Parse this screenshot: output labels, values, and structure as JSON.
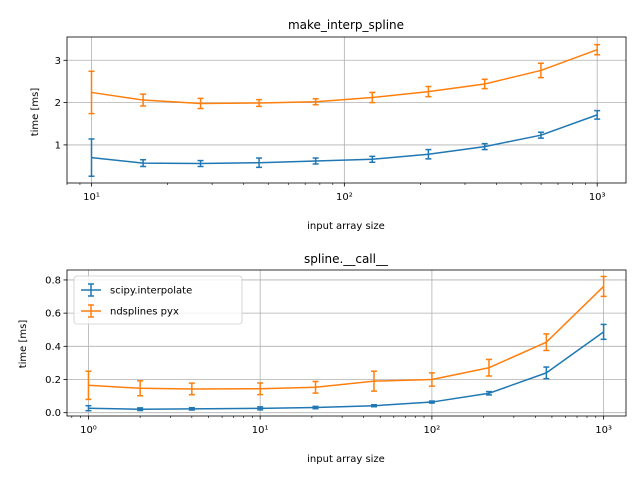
{
  "chart_data": [
    {
      "type": "line",
      "title": "make_interp_spline",
      "xlabel": "input array size",
      "ylabel": "time [ms]",
      "xscale": "log",
      "xlim": [
        8,
        1300
      ],
      "ylim": [
        0.1,
        3.55
      ],
      "xticks": [
        10,
        100,
        1000
      ],
      "xtick_labels": [
        "10¹",
        "10²",
        "10³"
      ],
      "yticks": [
        1,
        2,
        3
      ],
      "ytick_labels": [
        "1",
        "2",
        "3"
      ],
      "grid": true,
      "legend": null,
      "x": [
        10,
        16,
        27,
        46,
        77,
        129,
        215,
        359,
        599,
        1000
      ],
      "series": [
        {
          "name": "scipy.interpolate",
          "color": "#1f77b4",
          "values": [
            0.7,
            0.57,
            0.56,
            0.58,
            0.62,
            0.66,
            0.78,
            0.96,
            1.23,
            1.71
          ],
          "errors": [
            0.44,
            0.08,
            0.07,
            0.11,
            0.07,
            0.07,
            0.11,
            0.07,
            0.07,
            0.1
          ]
        },
        {
          "name": "ndsplines pyx",
          "color": "#ff7f0e",
          "values": [
            2.24,
            2.06,
            1.98,
            1.99,
            2.02,
            2.12,
            2.26,
            2.44,
            2.76,
            3.25
          ],
          "errors": [
            0.5,
            0.14,
            0.12,
            0.08,
            0.07,
            0.12,
            0.12,
            0.11,
            0.17,
            0.12
          ]
        }
      ]
    },
    {
      "type": "line",
      "title": "spline.__call__",
      "xlabel": "input array size",
      "ylabel": "time [ms]",
      "xscale": "log",
      "xlim": [
        0.75,
        1350
      ],
      "ylim": [
        -0.02,
        0.86
      ],
      "xticks": [
        1,
        10,
        100,
        1000
      ],
      "xtick_labels": [
        "10⁰",
        "10¹",
        "10²",
        "10³"
      ],
      "yticks": [
        0.0,
        0.2,
        0.4,
        0.6,
        0.8
      ],
      "ytick_labels": [
        "0.0",
        "0.2",
        "0.4",
        "0.6",
        "0.8"
      ],
      "grid": true,
      "legend": "upper-left",
      "x": [
        1,
        2,
        4,
        10,
        21,
        46,
        100,
        215,
        464,
        1000
      ],
      "series": [
        {
          "name": "scipy.interpolate",
          "color": "#1f77b4",
          "values": [
            0.027,
            0.021,
            0.023,
            0.026,
            0.031,
            0.042,
            0.064,
            0.117,
            0.24,
            0.487
          ],
          "errors": [
            0.015,
            0.008,
            0.007,
            0.009,
            0.007,
            0.006,
            0.006,
            0.01,
            0.035,
            0.045
          ]
        },
        {
          "name": "ndsplines pyx",
          "color": "#ff7f0e",
          "values": [
            0.165,
            0.147,
            0.143,
            0.144,
            0.153,
            0.19,
            0.2,
            0.271,
            0.425,
            0.761
          ],
          "errors": [
            0.085,
            0.045,
            0.035,
            0.035,
            0.035,
            0.06,
            0.04,
            0.05,
            0.05,
            0.06
          ]
        }
      ]
    }
  ]
}
